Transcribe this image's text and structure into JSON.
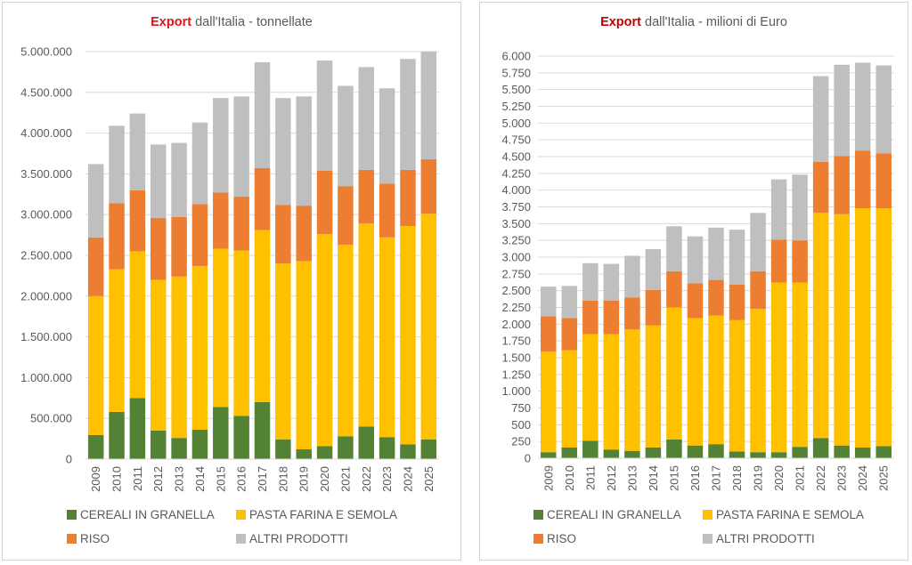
{
  "legend": [
    {
      "label": "CEREALI IN GRANELLA",
      "color": "#548235"
    },
    {
      "label": "PASTA FARINA E SEMOLA",
      "color": "#ffc000"
    },
    {
      "label": "RISO",
      "color": "#ed7d31"
    },
    {
      "label": "ALTRI PRODOTTI",
      "color": "#bfbfbf"
    }
  ],
  "chart_data": [
    {
      "type": "bar",
      "stacked": true,
      "title_accent": "Export",
      "title_rest": " dall'Italia - tonnellate",
      "xlabel": "",
      "ylabel": "",
      "ylim": [
        0,
        5000000
      ],
      "yticks": [
        0,
        500000,
        1000000,
        1500000,
        2000000,
        2500000,
        3000000,
        3500000,
        4000000,
        4500000,
        5000000
      ],
      "ytick_labels": [
        "0",
        "500.000",
        "1.000.000",
        "1.500.000",
        "2.000.000",
        "2.500.000",
        "3.000.000",
        "3.500.000",
        "4.000.000",
        "4.500.000",
        "5.000.000"
      ],
      "grid": true,
      "legend_position": "bottom",
      "categories": [
        "2009",
        "2010",
        "2011",
        "2012",
        "2013",
        "2014",
        "2015",
        "2016",
        "2017",
        "2018",
        "2019",
        "2020",
        "2021",
        "2022",
        "2023",
        "2024",
        "2025"
      ],
      "series": [
        {
          "name": "CEREALI IN GRANELLA",
          "color": "#548235",
          "values": [
            295000,
            580000,
            750000,
            350000,
            260000,
            360000,
            640000,
            530000,
            700000,
            240000,
            120000,
            160000,
            280000,
            400000,
            270000,
            180000,
            240000
          ]
        },
        {
          "name": "PASTA FARINA E SEMOLA",
          "color": "#ffc000",
          "values": [
            1705000,
            1750000,
            1800000,
            1850000,
            1980000,
            2010000,
            1940000,
            2030000,
            2110000,
            2160000,
            2310000,
            2600000,
            2350000,
            2490000,
            2450000,
            2680000,
            2770000
          ]
        },
        {
          "name": "RISO",
          "color": "#ed7d31",
          "values": [
            720000,
            810000,
            750000,
            760000,
            730000,
            760000,
            690000,
            660000,
            760000,
            720000,
            680000,
            780000,
            720000,
            660000,
            660000,
            690000,
            670000
          ]
        },
        {
          "name": "ALTRI PRODOTTI",
          "color": "#bfbfbf",
          "values": [
            900000,
            950000,
            940000,
            900000,
            910000,
            1000000,
            1160000,
            1230000,
            1300000,
            1310000,
            1340000,
            1350000,
            1230000,
            1260000,
            1170000,
            1360000,
            1320000
          ]
        }
      ]
    },
    {
      "type": "bar",
      "stacked": true,
      "title_accent": "Export",
      "title_rest": " dall'Italia - milioni di Euro",
      "xlabel": "",
      "ylabel": "",
      "ylim": [
        0,
        6000
      ],
      "yticks": [
        0,
        250,
        500,
        750,
        1000,
        1250,
        1500,
        1750,
        2000,
        2250,
        2500,
        2750,
        3000,
        3250,
        3500,
        3750,
        4000,
        4250,
        4500,
        4750,
        5000,
        5250,
        5500,
        5750,
        6000
      ],
      "ytick_labels": [
        "0",
        "250",
        "500",
        "750",
        "1.000",
        "1.250",
        "1.500",
        "1.750",
        "2.000",
        "2.250",
        "2.500",
        "2.750",
        "3.000",
        "3.250",
        "3.500",
        "3.750",
        "4.000",
        "4.250",
        "4.500",
        "4.750",
        "5.000",
        "5.250",
        "5.500",
        "5.750",
        "6.000"
      ],
      "grid": true,
      "legend_position": "bottom",
      "categories": [
        "2009",
        "2010",
        "2011",
        "2012",
        "2013",
        "2014",
        "2015",
        "2016",
        "2017",
        "2018",
        "2019",
        "2020",
        "2021",
        "2022",
        "2023",
        "2024",
        "2025"
      ],
      "series": [
        {
          "name": "CEREALI IN GRANELLA",
          "color": "#548235",
          "values": [
            90,
            160,
            260,
            130,
            110,
            160,
            280,
            190,
            210,
            100,
            90,
            90,
            170,
            300,
            190,
            160,
            180
          ]
        },
        {
          "name": "PASTA FARINA E SEMOLA",
          "color": "#ffc000",
          "values": [
            1500,
            1450,
            1590,
            1720,
            1810,
            1820,
            1970,
            1900,
            1920,
            1960,
            2140,
            2530,
            2450,
            3360,
            3450,
            3570,
            3550
          ]
        },
        {
          "name": "RISO",
          "color": "#ed7d31",
          "values": [
            530,
            480,
            500,
            500,
            480,
            530,
            540,
            520,
            530,
            530,
            560,
            640,
            630,
            760,
            870,
            860,
            820
          ]
        },
        {
          "name": "ALTRI PRODOTTI",
          "color": "#bfbfbf",
          "values": [
            440,
            480,
            560,
            550,
            620,
            610,
            670,
            700,
            780,
            820,
            870,
            900,
            980,
            1280,
            1360,
            1310,
            1310
          ]
        }
      ]
    }
  ]
}
